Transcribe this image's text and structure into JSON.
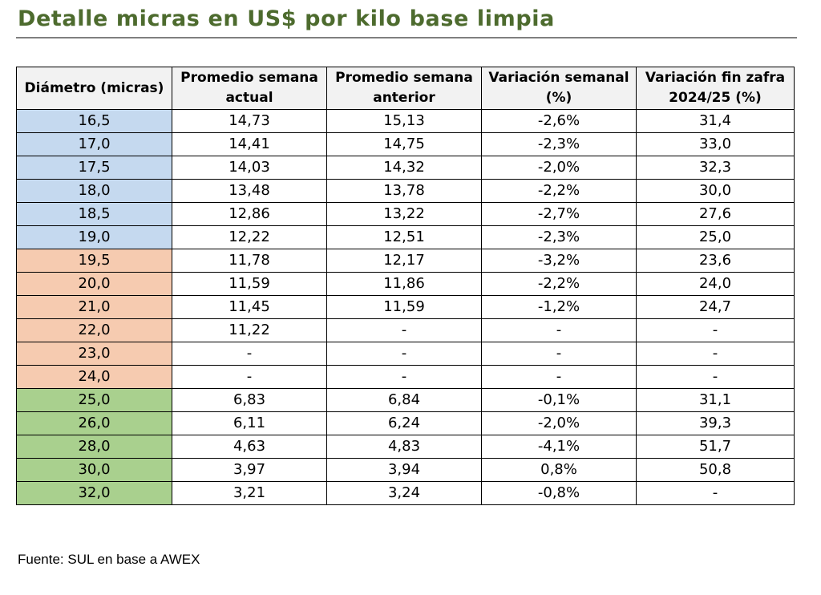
{
  "title": "Detalle micras en US$ por kilo base limpia",
  "table": {
    "headers": [
      "Diámetro (micras)",
      "Promedio semana actual",
      "Promedio semana anterior",
      "Variación semanal (%)",
      "Variación fin zafra 2024/25 (%)"
    ],
    "rows": [
      {
        "diam": "16,5",
        "actual": "14,73",
        "anterior": "15,13",
        "var_sem": "-2,6%",
        "var_zafra": "31,4",
        "group": "blue"
      },
      {
        "diam": "17,0",
        "actual": "14,41",
        "anterior": "14,75",
        "var_sem": "-2,3%",
        "var_zafra": "33,0",
        "group": "blue"
      },
      {
        "diam": "17,5",
        "actual": "14,03",
        "anterior": "14,32",
        "var_sem": "-2,0%",
        "var_zafra": "32,3",
        "group": "blue"
      },
      {
        "diam": "18,0",
        "actual": "13,48",
        "anterior": "13,78",
        "var_sem": "-2,2%",
        "var_zafra": "30,0",
        "group": "blue"
      },
      {
        "diam": "18,5",
        "actual": "12,86",
        "anterior": "13,22",
        "var_sem": "-2,7%",
        "var_zafra": "27,6",
        "group": "blue"
      },
      {
        "diam": "19,0",
        "actual": "12,22",
        "anterior": "12,51",
        "var_sem": "-2,3%",
        "var_zafra": "25,0",
        "group": "blue"
      },
      {
        "diam": "19,5",
        "actual": "11,78",
        "anterior": "12,17",
        "var_sem": "-3,2%",
        "var_zafra": "23,6",
        "group": "orange"
      },
      {
        "diam": "20,0",
        "actual": "11,59",
        "anterior": "11,86",
        "var_sem": "-2,2%",
        "var_zafra": "24,0",
        "group": "orange"
      },
      {
        "diam": "21,0",
        "actual": "11,45",
        "anterior": "11,59",
        "var_sem": "-1,2%",
        "var_zafra": "24,7",
        "group": "orange"
      },
      {
        "diam": "22,0",
        "actual": "11,22",
        "anterior": "-",
        "var_sem": "-",
        "var_zafra": "-",
        "group": "orange"
      },
      {
        "diam": "23,0",
        "actual": "-",
        "anterior": "-",
        "var_sem": "-",
        "var_zafra": "-",
        "group": "orange"
      },
      {
        "diam": "24,0",
        "actual": "-",
        "anterior": "-",
        "var_sem": "-",
        "var_zafra": "-",
        "group": "orange"
      },
      {
        "diam": "25,0",
        "actual": "6,83",
        "anterior": "6,84",
        "var_sem": "-0,1%",
        "var_zafra": "31,1",
        "group": "green"
      },
      {
        "diam": "26,0",
        "actual": "6,11",
        "anterior": "6,24",
        "var_sem": "-2,0%",
        "var_zafra": "39,3",
        "group": "green"
      },
      {
        "diam": "28,0",
        "actual": "4,63",
        "anterior": "4,83",
        "var_sem": "-4,1%",
        "var_zafra": "51,7",
        "group": "green"
      },
      {
        "diam": "30,0",
        "actual": "3,97",
        "anterior": "3,94",
        "var_sem": "0,8%",
        "var_zafra": "50,8",
        "group": "green"
      },
      {
        "diam": "32,0",
        "actual": "3,21",
        "anterior": "3,24",
        "var_sem": "-0,8%",
        "var_zafra": "-",
        "group": "green"
      }
    ]
  },
  "source": "Fuente: SUL en base a AWEX",
  "colors": {
    "title": "#4d6b2e",
    "header_bg": "#f2f2f2",
    "blue": "#c5d9ef",
    "orange": "#f6cbb0",
    "green": "#a9d08e"
  }
}
